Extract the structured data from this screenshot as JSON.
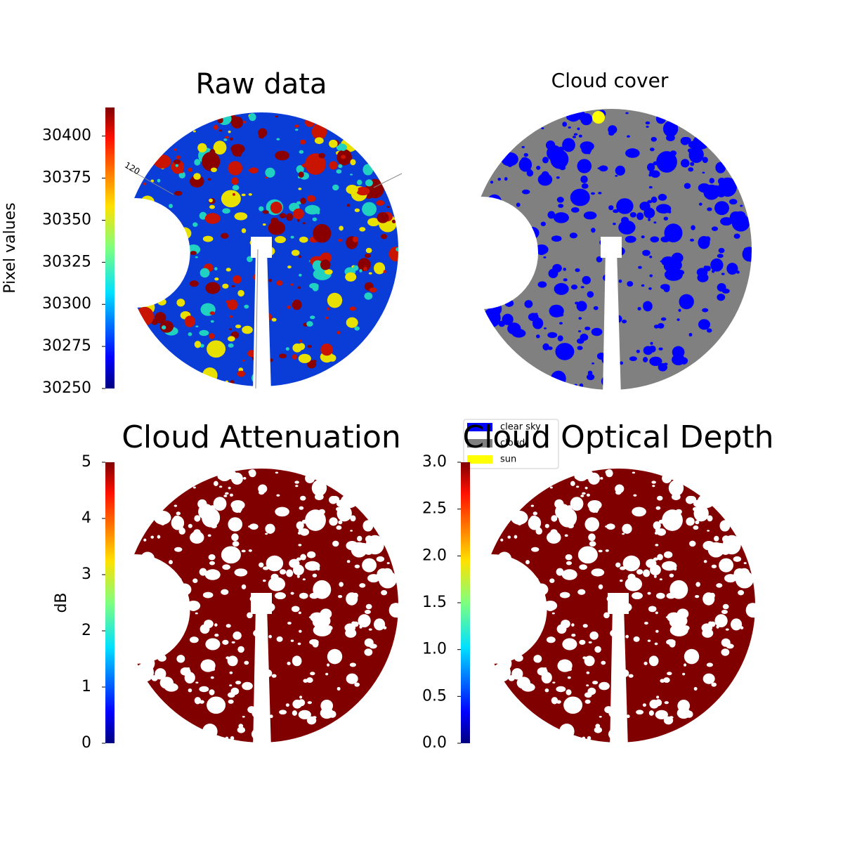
{
  "chart_data": [
    {
      "type": "image",
      "title": "Raw data",
      "annotations": [
        "120"
      ],
      "image_color": "#0a3cd8",
      "blob_colors": [
        "#c81400",
        "#e8e000",
        "#20d0c0",
        "#8a0000"
      ],
      "colorbar": {
        "label": "Pixel values",
        "colormap": "jet",
        "ylim": [
          30250,
          30417
        ],
        "yticks": [
          30250,
          30275,
          30300,
          30325,
          30350,
          30375,
          30400
        ]
      }
    },
    {
      "type": "image",
      "title": "Cloud cover",
      "image_color": "#808080",
      "blob_colors": [
        "#0000ff"
      ],
      "legend": {
        "series": [
          {
            "name": "clear sky",
            "color": "#0000ff"
          },
          {
            "name": "cloud",
            "color": "#808080"
          },
          {
            "name": "sun",
            "color": "#ffff00"
          }
        ]
      }
    },
    {
      "type": "image",
      "title": "Cloud Attenuation",
      "image_color": "#800000",
      "blob_colors": [
        "#ffffff"
      ],
      "colorbar": {
        "label": "dB",
        "colormap": "jet",
        "ylim": [
          0,
          5
        ],
        "yticks": [
          0,
          1,
          2,
          3,
          4,
          5
        ]
      }
    },
    {
      "type": "image",
      "title": "Cloud Optical Depth",
      "image_color": "#800000",
      "blob_colors": [
        "#ffffff"
      ],
      "colorbar": {
        "colormap": "jet",
        "ylim": [
          0,
          3
        ],
        "yticks": [
          {
            "value": 0,
            "label": "0.0"
          },
          {
            "value": 0.5,
            "label": "0.5"
          },
          {
            "value": 1,
            "label": "1.0"
          },
          {
            "value": 1.5,
            "label": "1.5"
          },
          {
            "value": 2,
            "label": "2.0"
          },
          {
            "value": 2.5,
            "label": "2.5"
          },
          {
            "value": 3,
            "label": "3.0"
          }
        ]
      }
    }
  ]
}
